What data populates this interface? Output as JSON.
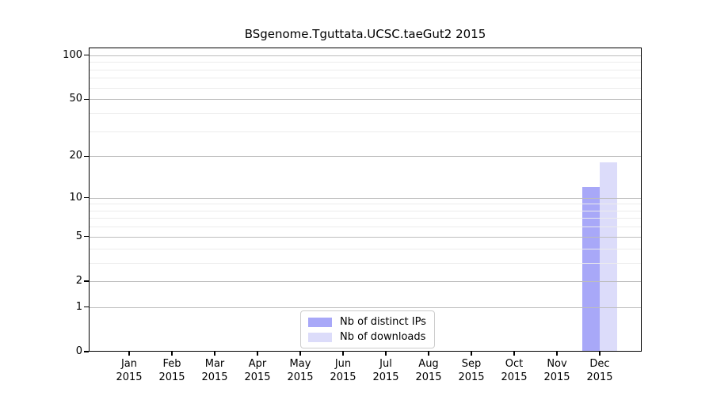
{
  "chart_data": {
    "type": "bar",
    "title": "BSgenome.Tguttata.UCSC.taeGut2 2015",
    "categories": [
      "Jan",
      "Feb",
      "Mar",
      "Apr",
      "May",
      "Jun",
      "Jul",
      "Aug",
      "Sep",
      "Oct",
      "Nov",
      "Dec"
    ],
    "x_tick_second_line": "2015",
    "series": [
      {
        "name": "Nb of distinct IPs",
        "color": "#a8a8f8",
        "values": [
          0,
          0,
          0,
          0,
          0,
          0,
          0,
          0,
          0,
          0,
          0,
          12
        ]
      },
      {
        "name": "Nb of downloads",
        "color": "#dcdcfa",
        "values": [
          0,
          0,
          0,
          0,
          0,
          0,
          0,
          0,
          0,
          0,
          0,
          18
        ]
      }
    ],
    "xlabel": "",
    "ylabel": "",
    "y_axis": {
      "scale": "log1p",
      "major_ticks": [
        100,
        50,
        20,
        10,
        5,
        2,
        1,
        0
      ],
      "minor_ticks": [
        90,
        80,
        70,
        60,
        40,
        30,
        9,
        8,
        7,
        6,
        4,
        3
      ],
      "ylim": [
        0,
        113
      ]
    },
    "legend": {
      "position": "bottom-center"
    },
    "colors": {
      "major_grid": "#bdbdbd",
      "minor_grid": "#ececec",
      "spine": "#000000",
      "background": "#ffffff"
    }
  }
}
